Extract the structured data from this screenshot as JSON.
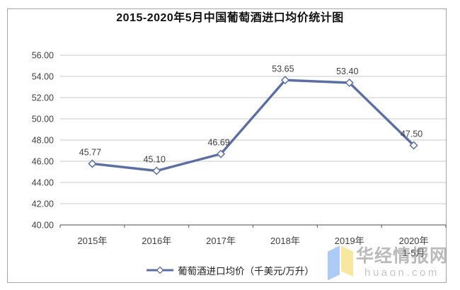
{
  "title": "2015-2020年5月中国葡萄酒进口均价统计图",
  "chart_data": {
    "type": "line",
    "title": "2015-2020年5月中国葡萄酒进口均价统计图",
    "categories": [
      "2015年",
      "2016年",
      "2017年",
      "2018年",
      "2019年",
      "2020年"
    ],
    "category_sublabels": [
      "",
      "",
      "",
      "",
      "",
      "1-5月"
    ],
    "series": [
      {
        "name": "葡萄酒进口均价（千美元/万升）",
        "values": [
          45.77,
          45.1,
          46.69,
          53.65,
          53.4,
          47.5
        ]
      }
    ],
    "point_labels": [
      "45.77",
      "45.10",
      "46.69",
      "53.65",
      "53.40",
      "47.50"
    ],
    "xlabel": "",
    "ylabel": "",
    "ylim": [
      40,
      56
    ],
    "ytick_step": 2,
    "ytick_labels": [
      "40.00",
      "42.00",
      "44.00",
      "46.00",
      "48.00",
      "50.00",
      "52.00",
      "54.00",
      "56.00"
    ],
    "grid": true,
    "legend_position": "bottom",
    "marker": "diamond"
  },
  "legend": {
    "label": "葡萄酒进口均价（千美元/万升）"
  },
  "watermark": {
    "brand": "华经情报网",
    "domain": "huaon.com"
  },
  "colors": {
    "line": "#5b6fa5",
    "marker_fill": "#ffffff",
    "grid": "#c9c9c9",
    "axis": "#6e6e6e",
    "border": "#a6a6a6",
    "label": "#3f3f3f",
    "logo_blue": "#aecbf5",
    "logo_yellow": "#f7e79f"
  }
}
